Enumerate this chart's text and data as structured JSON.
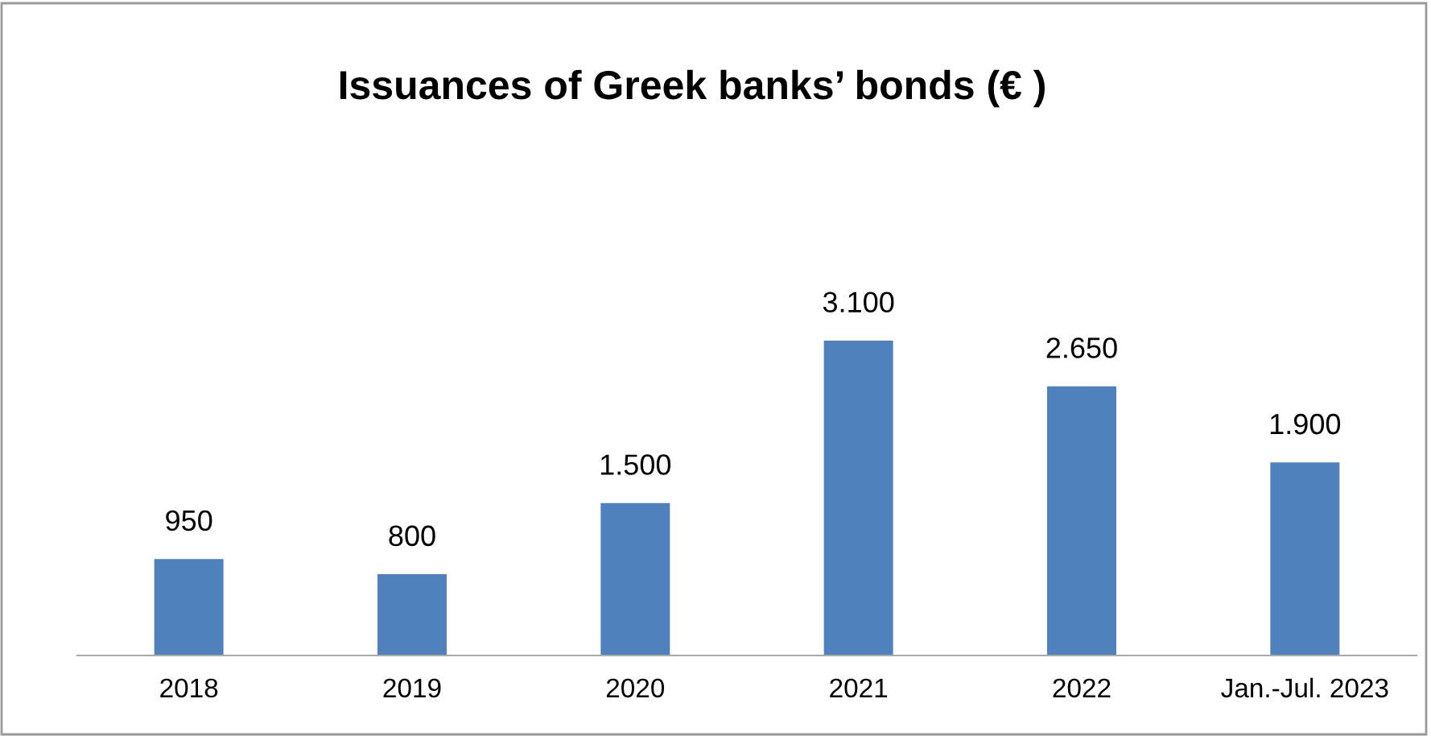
{
  "chart_data": {
    "type": "bar",
    "title": "Issuances of Greek banks’ bonds (€ )",
    "categories": [
      "2018",
      "2019",
      "2020",
      "2021",
      "2022",
      "Jan.-Jul. 2023"
    ],
    "values": [
      950,
      800,
      1500,
      3100,
      2650,
      1900
    ],
    "value_labels": [
      "950",
      "800",
      "1.500",
      "3.100",
      "2.650",
      "1.900"
    ],
    "color": "#4f81bd",
    "grid": false,
    "legend": false
  }
}
